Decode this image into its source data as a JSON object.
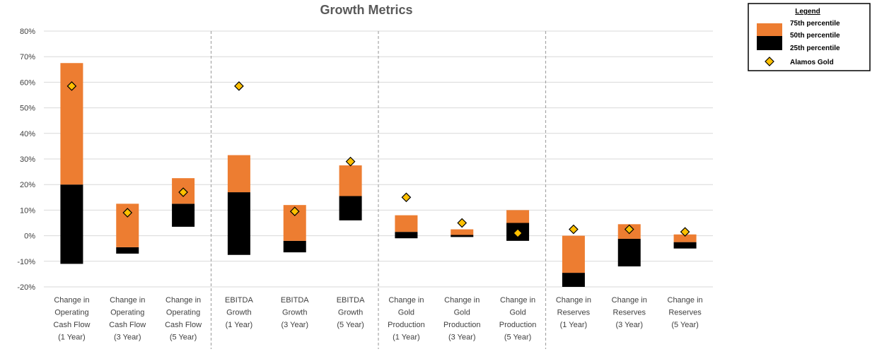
{
  "chart_data": {
    "type": "bar",
    "title": "Growth Metrics",
    "xlabel": "",
    "ylabel": "",
    "ylim": [
      -20,
      80
    ],
    "yticks": [
      -20,
      -10,
      0,
      10,
      20,
      30,
      40,
      50,
      60,
      70,
      80
    ],
    "ytick_labels": [
      "-20%",
      "-10%",
      "0%",
      "10%",
      "20%",
      "30%",
      "40%",
      "50%",
      "60%",
      "70%",
      "80%"
    ],
    "grid": true,
    "groups": [
      {
        "name": "Change in Operating Cash Flow",
        "size": 3
      },
      {
        "name": "EBITDA Growth",
        "size": 3
      },
      {
        "name": "Change in Gold Production",
        "size": 3
      },
      {
        "name": "Change in Reserves",
        "size": 3
      }
    ],
    "categories": [
      [
        "Change in",
        "Operating",
        "Cash Flow",
        "(1 Year)"
      ],
      [
        "Change in",
        "Operating",
        "Cash Flow",
        "(3 Year)"
      ],
      [
        "Change in",
        "Operating",
        "Cash Flow",
        "(5 Year)"
      ],
      [
        "EBITDA",
        "Growth",
        "(1 Year)"
      ],
      [
        "EBITDA",
        "Growth",
        "(3 Year)"
      ],
      [
        "EBITDA",
        "Growth",
        "(5 Year)"
      ],
      [
        "Change in",
        "Gold",
        "Production",
        "(1 Year)"
      ],
      [
        "Change in",
        "Gold",
        "Production",
        "(3 Year)"
      ],
      [
        "Change in",
        "Gold",
        "Production",
        "(5 Year)"
      ],
      [
        "Change in",
        "Reserves",
        "(1 Year)"
      ],
      [
        "Change in",
        "Reserves",
        "(3 Year)"
      ],
      [
        "Change in",
        "Reserves",
        "(5 Year)"
      ]
    ],
    "series": [
      {
        "name": "25th percentile",
        "color": "#000000",
        "values": [
          -11,
          -7,
          3.5,
          -7.5,
          -6.5,
          6,
          -1,
          -0.5,
          -2,
          -20,
          -12,
          -5
        ]
      },
      {
        "name": "50th percentile",
        "color": "#000000",
        "values": [
          20,
          -4.5,
          12.5,
          17,
          -2,
          15.5,
          1.5,
          0.3,
          5,
          -14.5,
          -1.2,
          -2.5
        ]
      },
      {
        "name": "75th percentile",
        "color": "#ed7d31",
        "values": [
          67.5,
          12.5,
          22.5,
          31.5,
          12,
          27.5,
          8,
          2.5,
          10,
          0,
          4.5,
          0.5
        ]
      },
      {
        "name": "Alamos Gold",
        "color": "#ffc000",
        "marker": "diamond",
        "values": [
          58.5,
          9,
          17,
          58.5,
          9.5,
          29,
          15,
          5,
          1,
          2.5,
          2.5,
          1.5
        ]
      }
    ],
    "legend": {
      "title": "Legend",
      "position": "top-right",
      "items": [
        {
          "label": "75th percentile",
          "color": "#ed7d31",
          "kind": "bar-top"
        },
        {
          "label": "50th percentile",
          "color": "#ed7d31",
          "kind": "bar-top"
        },
        {
          "label": "25th percentile",
          "color": "#000000",
          "kind": "bar-bottom"
        },
        {
          "label": "Alamos Gold",
          "color": "#ffc000",
          "kind": "diamond"
        }
      ]
    }
  }
}
